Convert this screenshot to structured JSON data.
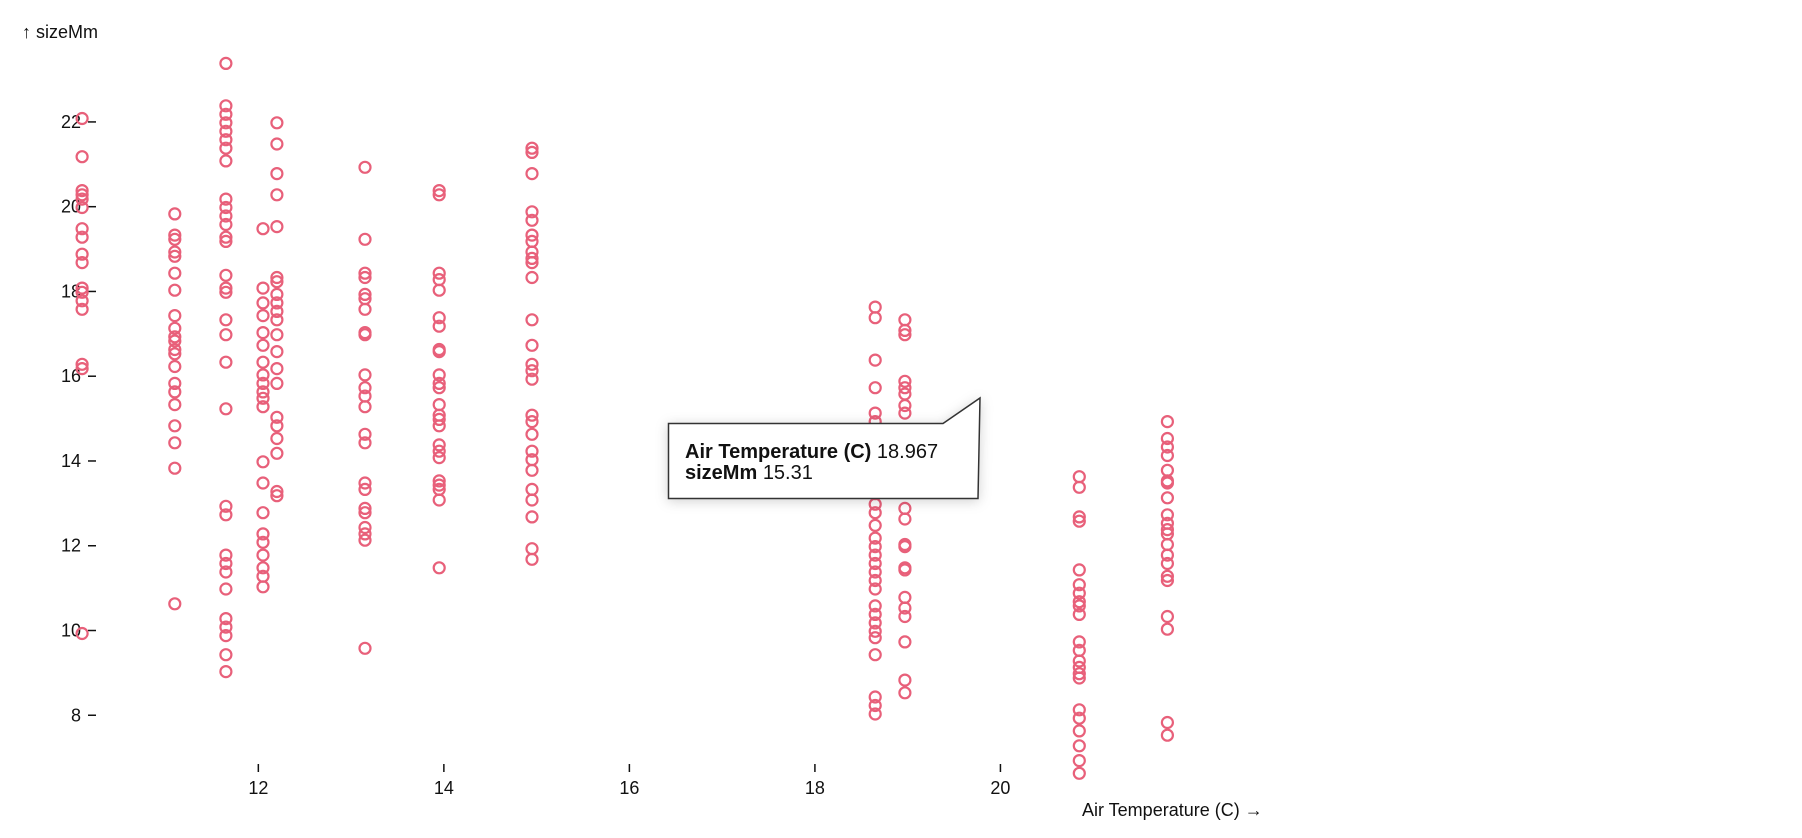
{
  "chart_data": {
    "type": "scatter",
    "xlabel": "Air Temperature (C) →",
    "ylabel": "↑ sizeMm",
    "x_ticks": [
      12,
      14,
      16,
      18,
      20
    ],
    "y_ticks": [
      8,
      10,
      12,
      14,
      16,
      18,
      20,
      22
    ],
    "xlim": [
      10.25,
      23.1
    ],
    "ylim": [
      6.85,
      23.65
    ],
    "grid": false,
    "legend": "none",
    "marker": "hollow-circle",
    "color": "#e8607a",
    "columns": [
      {
        "x": 10.1,
        "y": [
          22.08,
          21.18,
          20.38,
          20.28,
          20.18,
          19.98,
          19.48,
          19.28,
          18.88,
          18.68,
          18.08,
          17.98,
          17.78,
          17.58,
          16.28,
          16.18,
          9.93
        ]
      },
      {
        "x": 11.1,
        "y": [
          19.83,
          19.33,
          19.23,
          18.93,
          18.83,
          18.43,
          18.03,
          17.43,
          17.13,
          16.93,
          16.83,
          16.63,
          16.53,
          16.23,
          15.83,
          15.63,
          15.33,
          14.83,
          14.43,
          13.83,
          10.63
        ]
      },
      {
        "x": 11.65,
        "y": [
          23.38,
          22.38,
          22.18,
          21.98,
          21.78,
          21.58,
          21.38,
          21.08,
          20.18,
          19.98,
          19.78,
          19.58,
          19.28,
          19.18,
          18.38,
          18.08,
          17.98,
          17.33,
          16.98,
          16.33,
          15.23,
          12.93,
          12.73,
          11.78,
          11.58,
          11.38,
          10.98,
          10.28,
          10.08,
          9.88,
          9.43,
          9.03
        ]
      },
      {
        "x": 12.05,
        "y": [
          19.48,
          18.08,
          17.73,
          17.43,
          17.03,
          16.73,
          16.33,
          16.03,
          15.83,
          15.63,
          15.48,
          15.28,
          13.98,
          13.48,
          12.78,
          12.28,
          12.08,
          11.78,
          11.48,
          11.28,
          11.03
        ]
      },
      {
        "x": 12.2,
        "y": [
          21.98,
          21.48,
          20.78,
          20.28,
          19.53,
          18.33,
          18.23,
          17.93,
          17.73,
          17.53,
          17.33,
          16.98,
          16.58,
          16.18,
          15.83,
          15.03,
          14.83,
          14.53,
          14.18,
          13.28,
          13.18
        ]
      },
      {
        "x": 13.15,
        "y": [
          20.93,
          19.23,
          18.43,
          18.33,
          17.93,
          17.83,
          17.58,
          17.03,
          16.98,
          16.03,
          15.73,
          15.53,
          15.28,
          14.63,
          14.43,
          13.48,
          13.33,
          12.88,
          12.78,
          12.43,
          12.28,
          12.13,
          9.58
        ]
      },
      {
        "x": 13.95,
        "y": [
          20.38,
          20.28,
          18.43,
          18.28,
          18.03,
          17.38,
          17.18,
          16.63,
          16.58,
          16.03,
          15.83,
          15.73,
          15.33,
          15.08,
          14.98,
          14.83,
          14.38,
          14.23,
          14.08,
          13.53,
          13.43,
          13.33,
          13.08,
          11.48
        ]
      },
      {
        "x": 14.95,
        "y": [
          21.38,
          21.28,
          20.78,
          19.88,
          19.68,
          19.33,
          19.18,
          18.93,
          18.78,
          18.68,
          18.33,
          17.33,
          16.73,
          16.28,
          16.13,
          15.93,
          15.08,
          14.93,
          14.63,
          14.23,
          14.03,
          13.78,
          13.33,
          13.08,
          12.68,
          11.93,
          11.68
        ]
      },
      {
        "x": 18.65,
        "y": [
          17.63,
          17.38,
          16.38,
          15.73,
          15.13,
          14.93,
          14.53,
          14.33,
          14.03,
          13.78,
          13.58,
          13.23,
          12.98,
          12.78,
          12.48,
          12.18,
          11.98,
          11.78,
          11.58,
          11.38,
          11.18,
          10.98,
          10.58,
          10.38,
          10.18,
          9.98,
          9.83,
          9.43,
          8.43,
          8.23,
          8.03
        ]
      },
      {
        "x": 18.97,
        "y": [
          17.33,
          17.08,
          16.98,
          15.88,
          15.73,
          15.58,
          15.31,
          15.13,
          14.73,
          14.53,
          14.33,
          13.93,
          13.63,
          12.88,
          12.63,
          12.03,
          11.98,
          11.48,
          11.43,
          10.78,
          10.53,
          10.33,
          9.73,
          8.83,
          8.53
        ]
      },
      {
        "x": 20.85,
        "y": [
          13.63,
          13.38,
          12.68,
          12.58,
          11.43,
          11.08,
          10.88,
          10.68,
          10.58,
          10.38,
          9.73,
          9.53,
          9.28,
          9.13,
          8.98,
          8.88,
          8.13,
          7.93,
          7.63,
          7.28,
          6.93,
          6.63
        ]
      },
      {
        "x": 21.8,
        "y": [
          14.93,
          14.53,
          14.33,
          14.13,
          13.78,
          13.53,
          13.48,
          13.13,
          12.73,
          12.53,
          12.38,
          12.28,
          12.03,
          11.78,
          11.58,
          11.28,
          11.18,
          10.33,
          10.03,
          7.83,
          7.53
        ]
      }
    ]
  },
  "tooltip": {
    "x_label": "Air Temperature (C)",
    "x_value": "18.967",
    "y_label": "sizeMm",
    "y_value": "15.31"
  }
}
